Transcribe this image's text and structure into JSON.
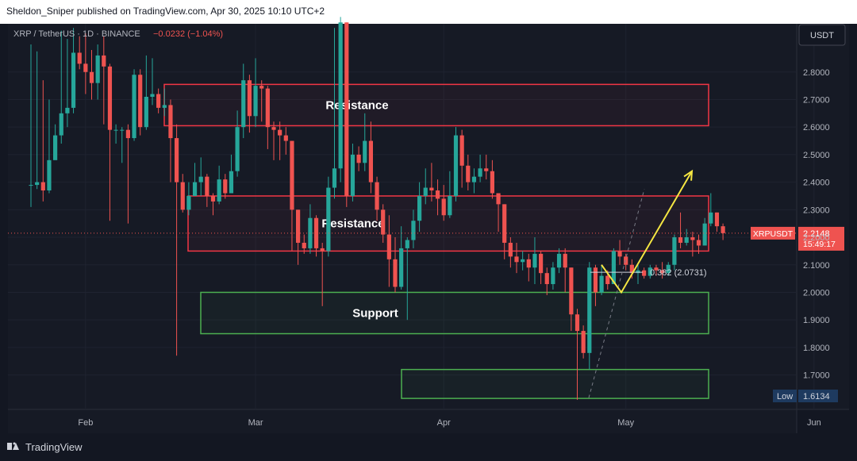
{
  "header": {
    "publisher_line": "Sheldon_Sniper published on TradingView.com, Apr 30, 2025 10:10 UTC+2"
  },
  "legend": {
    "symbol": "XRP / TetherUS · 1D · BINANCE",
    "change": "−0.0232 (−1.04%)"
  },
  "currency_button": "USDT",
  "brand": {
    "name": "TradingView"
  },
  "colors": {
    "background": "#161a25",
    "up": "#26a69a",
    "down": "#ef5350",
    "resistance_box": "#f23645",
    "support_box": "#4caf50",
    "projection": "#f5e642",
    "text": "#d1d4dc"
  },
  "chart_data": {
    "type": "candlestick",
    "symbol": "XRPUSDT",
    "x_ticks": [
      "Feb",
      "Mar",
      "Apr",
      "May",
      "Jun"
    ],
    "y_ticks": [
      "1.7000",
      "1.8000",
      "1.9000",
      "2.0000",
      "2.1000",
      "2.2000",
      "2.3000",
      "2.4000",
      "2.5000",
      "2.6000",
      "2.7000",
      "2.8000"
    ],
    "ylim": [
      1.575,
      2.975
    ],
    "last_price": {
      "label": "XRPUSDT",
      "value": 2.2148,
      "value_text": "2.2148",
      "countdown": "15:49:17"
    },
    "low_marker": {
      "label": "Low",
      "value": 1.6134,
      "value_text": "1.6134"
    },
    "zones": [
      {
        "kind": "resistance",
        "label": "Resistance",
        "y_top": 2.755,
        "y_bottom": 2.605
      },
      {
        "kind": "resistance",
        "label": "Resistance",
        "y_top": 2.35,
        "y_bottom": 2.15
      },
      {
        "kind": "support",
        "label": "Support",
        "y_top": 2.0,
        "y_bottom": 1.85
      },
      {
        "kind": "support",
        "label": "",
        "y_top": 1.72,
        "y_bottom": 1.615
      }
    ],
    "fib_level": {
      "label": "0.382 (2.0731)",
      "value": 2.0731
    },
    "projection_path": [
      2.1,
      2.0,
      2.44
    ],
    "candles": [
      [
        2.39,
        2.39,
        2.9,
        2.31
      ],
      [
        2.39,
        2.4,
        2.875,
        2.375
      ],
      [
        2.4,
        2.37,
        2.77,
        2.33
      ],
      [
        2.37,
        2.48,
        2.7,
        2.36
      ],
      [
        2.48,
        2.57,
        2.61,
        2.5
      ],
      [
        2.57,
        2.65,
        2.95,
        2.54
      ],
      [
        2.65,
        2.67,
        2.92,
        2.6
      ],
      [
        2.67,
        2.87,
        2.96,
        2.65
      ],
      [
        2.87,
        2.83,
        2.93,
        2.81
      ],
      [
        2.83,
        2.8,
        2.94,
        2.72
      ],
      [
        2.8,
        2.76,
        2.88,
        2.7
      ],
      [
        2.76,
        2.86,
        2.9,
        2.7
      ],
      [
        2.86,
        2.82,
        2.93,
        2.61
      ],
      [
        2.82,
        2.59,
        2.83,
        2.26
      ],
      [
        2.59,
        2.59,
        2.61,
        2.54
      ],
      [
        2.59,
        2.59,
        2.6,
        2.47
      ],
      [
        2.59,
        2.56,
        2.61,
        2.25
      ],
      [
        2.56,
        2.79,
        2.81,
        2.55
      ],
      [
        2.79,
        2.6,
        2.81,
        2.57
      ],
      [
        2.6,
        2.71,
        2.86,
        2.59
      ],
      [
        2.71,
        2.72,
        2.85,
        2.68
      ],
      [
        2.72,
        2.67,
        2.74,
        2.65
      ],
      [
        2.67,
        2.68,
        2.74,
        2.64
      ],
      [
        2.68,
        2.56,
        2.7,
        2.4
      ],
      [
        2.56,
        2.4,
        2.61,
        1.77
      ],
      [
        2.4,
        2.3,
        2.43,
        2.29
      ],
      [
        2.3,
        2.35,
        2.4,
        2.28
      ],
      [
        2.35,
        2.4,
        2.47,
        2.37
      ],
      [
        2.4,
        2.42,
        2.49,
        2.35
      ],
      [
        2.42,
        2.35,
        2.43,
        2.31
      ],
      [
        2.35,
        2.33,
        2.36,
        2.28
      ],
      [
        2.33,
        2.41,
        2.46,
        2.32
      ],
      [
        2.41,
        2.36,
        2.43,
        2.34
      ],
      [
        2.36,
        2.44,
        2.5,
        2.36
      ],
      [
        2.44,
        2.6,
        2.66,
        2.42
      ],
      [
        2.6,
        2.77,
        2.83,
        2.56
      ],
      [
        2.77,
        2.64,
        2.79,
        2.58
      ],
      [
        2.64,
        2.75,
        2.85,
        2.6
      ],
      [
        2.75,
        2.74,
        2.77,
        2.62
      ],
      [
        2.74,
        2.6,
        2.75,
        2.52
      ],
      [
        2.6,
        2.59,
        2.62,
        2.48
      ],
      [
        2.59,
        2.57,
        2.62,
        2.48
      ],
      [
        2.57,
        2.55,
        2.6,
        2.5
      ],
      [
        2.55,
        2.3,
        2.55,
        2.15
      ],
      [
        2.3,
        2.18,
        2.3,
        2.1
      ],
      [
        2.18,
        2.16,
        2.21,
        2.14
      ],
      [
        2.16,
        2.27,
        2.32,
        2.14
      ],
      [
        2.27,
        2.16,
        2.28,
        2.13
      ],
      [
        2.16,
        2.15,
        2.18,
        1.95
      ],
      [
        2.15,
        2.38,
        2.42,
        2.13
      ],
      [
        2.38,
        2.45,
        2.96,
        2.34
      ],
      [
        2.45,
        2.98,
        3.0,
        2.4
      ],
      [
        2.98,
        2.35,
        2.98,
        2.31
      ],
      [
        2.35,
        2.5,
        2.54,
        2.33
      ],
      [
        2.5,
        2.47,
        2.53,
        2.44
      ],
      [
        2.47,
        2.55,
        2.65,
        2.44
      ],
      [
        2.55,
        2.4,
        2.62,
        2.36
      ],
      [
        2.4,
        2.3,
        2.42,
        2.26
      ],
      [
        2.3,
        2.21,
        2.32,
        2.18
      ],
      [
        2.21,
        2.12,
        2.28,
        2.02
      ],
      [
        2.12,
        2.02,
        2.2,
        2.0
      ],
      [
        2.02,
        2.16,
        2.24,
        2.01
      ],
      [
        2.16,
        2.19,
        2.2,
        1.9
      ],
      [
        2.19,
        2.26,
        2.3,
        2.16
      ],
      [
        2.26,
        2.35,
        2.4,
        2.22
      ],
      [
        2.35,
        2.38,
        2.45,
        2.32
      ],
      [
        2.38,
        2.37,
        2.47,
        2.33
      ],
      [
        2.37,
        2.34,
        2.41,
        2.28
      ],
      [
        2.34,
        2.28,
        2.39,
        2.26
      ],
      [
        2.28,
        2.35,
        2.44,
        2.27
      ],
      [
        2.35,
        2.57,
        2.6,
        2.33
      ],
      [
        2.57,
        2.46,
        2.59,
        2.38
      ],
      [
        2.46,
        2.4,
        2.5,
        2.37
      ],
      [
        2.4,
        2.42,
        2.45,
        2.36
      ],
      [
        2.42,
        2.45,
        2.5,
        2.4
      ],
      [
        2.45,
        2.44,
        2.5,
        2.41
      ],
      [
        2.44,
        2.36,
        2.48,
        2.34
      ],
      [
        2.36,
        2.32,
        2.36,
        2.22
      ],
      [
        2.32,
        2.18,
        2.32,
        2.12
      ],
      [
        2.18,
        2.13,
        2.2,
        2.09
      ],
      [
        2.13,
        2.11,
        2.18,
        2.07
      ],
      [
        2.11,
        2.12,
        2.15,
        2.08
      ],
      [
        2.12,
        2.09,
        2.14,
        2.04
      ],
      [
        2.09,
        2.14,
        2.2,
        2.03
      ],
      [
        2.14,
        2.07,
        2.15,
        2.03
      ],
      [
        2.07,
        2.03,
        2.09,
        1.99
      ],
      [
        2.03,
        2.09,
        2.11,
        2.01
      ],
      [
        2.09,
        2.14,
        2.16,
        2.07
      ],
      [
        2.14,
        2.09,
        2.16,
        2.0
      ],
      [
        2.09,
        1.92,
        2.09,
        1.86
      ],
      [
        1.92,
        1.86,
        1.94,
        1.61
      ],
      [
        1.86,
        1.78,
        1.88,
        1.76
      ],
      [
        1.78,
        2.09,
        2.11,
        1.72
      ],
      [
        2.09,
        2.0,
        2.1,
        1.95
      ],
      [
        2.0,
        2.06,
        2.1,
        1.99
      ],
      [
        2.06,
        2.03,
        2.08,
        2.01
      ],
      [
        2.03,
        2.15,
        2.16,
        2.03
      ],
      [
        2.15,
        2.13,
        2.19,
        2.1
      ],
      [
        2.13,
        2.1,
        2.14,
        2.08
      ],
      [
        2.1,
        2.07,
        2.12,
        2.05
      ],
      [
        2.07,
        2.08,
        2.1,
        2.03
      ],
      [
        2.08,
        2.06,
        2.09,
        2.05
      ],
      [
        2.06,
        2.09,
        2.1,
        2.05
      ],
      [
        2.09,
        2.08,
        2.1,
        2.06
      ],
      [
        2.08,
        2.07,
        2.11,
        2.05
      ],
      [
        2.07,
        2.1,
        2.11,
        2.06
      ],
      [
        2.1,
        2.2,
        2.21,
        2.08
      ],
      [
        2.2,
        2.18,
        2.29,
        2.16
      ],
      [
        2.18,
        2.2,
        2.23,
        2.17
      ],
      [
        2.2,
        2.19,
        2.22,
        2.13
      ],
      [
        2.19,
        2.17,
        2.21,
        2.14
      ],
      [
        2.17,
        2.25,
        2.27,
        2.17
      ],
      [
        2.25,
        2.29,
        2.36,
        2.24
      ],
      [
        2.29,
        2.24,
        2.29,
        2.22
      ],
      [
        2.24,
        2.2148,
        2.25,
        2.19
      ]
    ]
  }
}
